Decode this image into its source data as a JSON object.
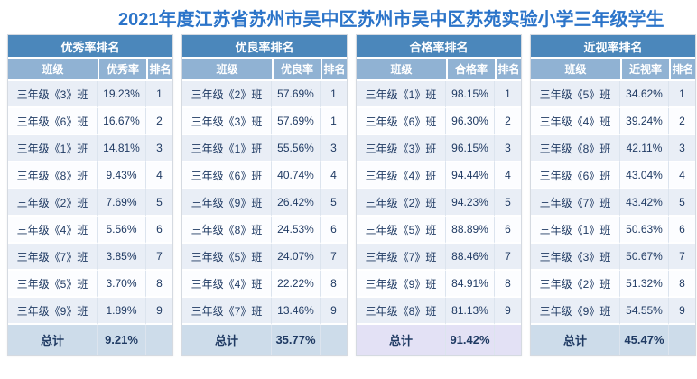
{
  "title": "2021年度江苏省苏州市吴中区苏州市吴中区苏苑实验小学三年级学生",
  "colors": {
    "title": "#2b74c9",
    "header_bg": "#4b87bb",
    "subheader_bg": "#90b2d3",
    "row_odd": "#e9eef6",
    "row_even": "#fcfdff",
    "total_bg": "#cddcea",
    "total_bg_highlight": "#e3e1f5",
    "text": "#1f3a63"
  },
  "tables": [
    {
      "title": "优秀率排名",
      "columns": [
        "班级",
        "优秀率",
        "排名"
      ],
      "rows": [
        [
          "三年级《3》班",
          "19.23%",
          "1"
        ],
        [
          "三年级《6》班",
          "16.67%",
          "2"
        ],
        [
          "三年级《1》班",
          "14.81%",
          "3"
        ],
        [
          "三年级《8》班",
          "9.43%",
          "4"
        ],
        [
          "三年级《2》班",
          "7.69%",
          "5"
        ],
        [
          "三年级《4》班",
          "5.56%",
          "6"
        ],
        [
          "三年级《7》班",
          "3.85%",
          "7"
        ],
        [
          "三年级《5》班",
          "3.70%",
          "8"
        ],
        [
          "三年级《9》班",
          "1.89%",
          "9"
        ]
      ],
      "total_label": "总计",
      "total_value": "9.21%",
      "total_highlighted": false
    },
    {
      "title": "优良率排名",
      "columns": [
        "班级",
        "优良率",
        "排名"
      ],
      "rows": [
        [
          "三年级《2》班",
          "57.69%",
          "1"
        ],
        [
          "三年级《3》班",
          "57.69%",
          "1"
        ],
        [
          "三年级《1》班",
          "55.56%",
          "3"
        ],
        [
          "三年级《6》班",
          "40.74%",
          "4"
        ],
        [
          "三年级《9》班",
          "26.42%",
          "5"
        ],
        [
          "三年级《8》班",
          "24.53%",
          "6"
        ],
        [
          "三年级《5》班",
          "24.07%",
          "7"
        ],
        [
          "三年级《4》班",
          "22.22%",
          "8"
        ],
        [
          "三年级《7》班",
          "13.46%",
          "9"
        ]
      ],
      "total_label": "总计",
      "total_value": "35.77%",
      "total_highlighted": false
    },
    {
      "title": "合格率排名",
      "columns": [
        "班级",
        "合格率",
        "排名"
      ],
      "rows": [
        [
          "三年级《1》班",
          "98.15%",
          "1"
        ],
        [
          "三年级《6》班",
          "96.30%",
          "2"
        ],
        [
          "三年级《3》班",
          "96.15%",
          "3"
        ],
        [
          "三年级《4》班",
          "94.44%",
          "4"
        ],
        [
          "三年级《2》班",
          "94.23%",
          "5"
        ],
        [
          "三年级《5》班",
          "88.89%",
          "6"
        ],
        [
          "三年级《7》班",
          "88.46%",
          "7"
        ],
        [
          "三年级《9》班",
          "84.91%",
          "8"
        ],
        [
          "三年级《8》班",
          "81.13%",
          "9"
        ]
      ],
      "total_label": "总计",
      "total_value": "91.42%",
      "total_highlighted": true
    },
    {
      "title": "近视率排名",
      "columns": [
        "班级",
        "近视率",
        "排名"
      ],
      "rows": [
        [
          "三年级《5》班",
          "34.62%",
          "1"
        ],
        [
          "三年级《4》班",
          "39.24%",
          "2"
        ],
        [
          "三年级《8》班",
          "42.11%",
          "3"
        ],
        [
          "三年级《6》班",
          "43.04%",
          "4"
        ],
        [
          "三年级《7》班",
          "43.42%",
          "5"
        ],
        [
          "三年级《1》班",
          "50.63%",
          "6"
        ],
        [
          "三年级《3》班",
          "50.67%",
          "7"
        ],
        [
          "三年级《2》班",
          "51.32%",
          "8"
        ],
        [
          "三年级《9》班",
          "54.55%",
          "9"
        ]
      ],
      "total_label": "总计",
      "total_value": "45.47%",
      "total_highlighted": false
    }
  ]
}
